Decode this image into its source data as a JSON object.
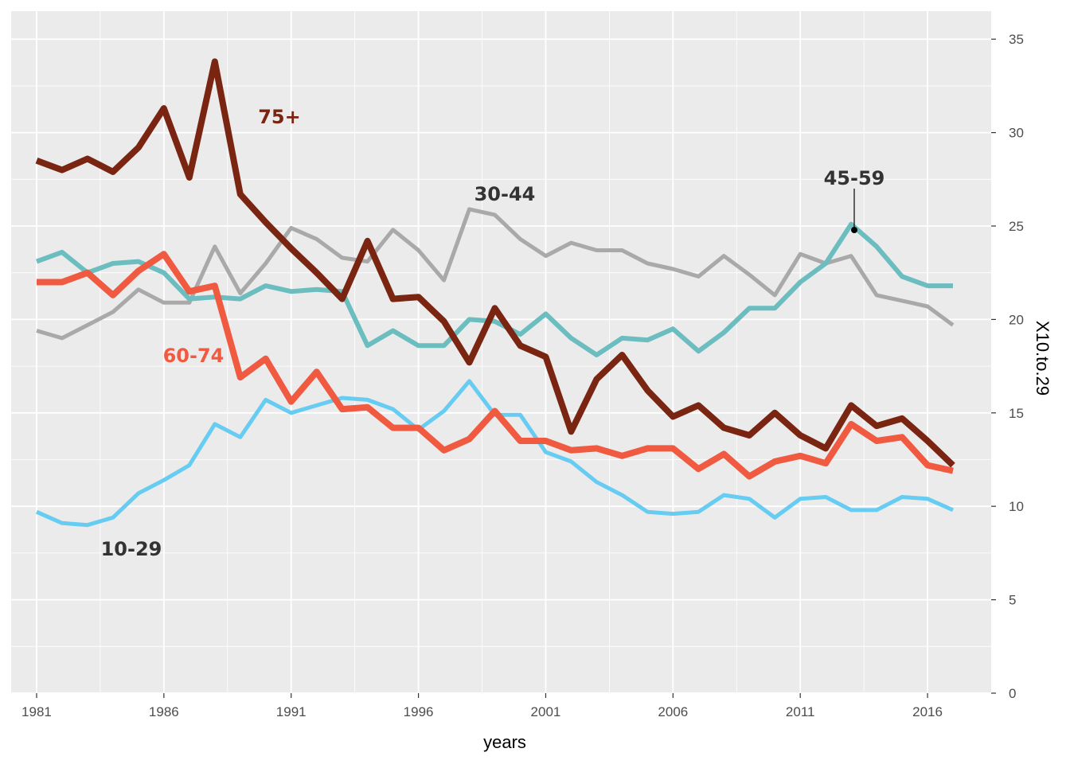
{
  "chart_data": {
    "type": "line",
    "xlabel": "years",
    "ylabel": "X10.to.29",
    "xlim": [
      1980,
      2018.5
    ],
    "ylim": [
      0,
      36.5
    ],
    "x_ticks": [
      1981,
      1986,
      1991,
      1996,
      2001,
      2006,
      2011,
      2016
    ],
    "y_ticks": [
      0,
      5,
      10,
      15,
      20,
      25,
      30,
      35
    ],
    "y_axis_position": "right",
    "grid": true,
    "legend": "none",
    "x": [
      1981,
      1982,
      1983,
      1984,
      1985,
      1986,
      1987,
      1988,
      1989,
      1990,
      1991,
      1992,
      1993,
      1994,
      1995,
      1996,
      1997,
      1998,
      1999,
      2000,
      2001,
      2002,
      2003,
      2004,
      2005,
      2006,
      2007,
      2008,
      2009,
      2010,
      2011,
      2012,
      2013,
      2014,
      2015,
      2016,
      2017
    ],
    "series": [
      {
        "name": "10-29",
        "color": "#66ccf2",
        "values": [
          9.7,
          9.1,
          9.0,
          9.4,
          10.7,
          11.4,
          12.2,
          14.4,
          13.7,
          15.7,
          15.0,
          15.4,
          15.8,
          15.7,
          15.2,
          14.1,
          15.1,
          16.7,
          14.9,
          14.9,
          12.9,
          12.4,
          11.3,
          10.6,
          9.7,
          9.6,
          9.7,
          10.6,
          10.4,
          9.4,
          10.4,
          10.5,
          9.8,
          9.8,
          10.5,
          10.4,
          9.8
        ]
      },
      {
        "name": "30-44",
        "color": "#a9a9a9",
        "values": [
          19.4,
          19.0,
          19.7,
          20.4,
          21.6,
          20.9,
          20.9,
          23.9,
          21.4,
          23.0,
          24.9,
          24.3,
          23.3,
          23.1,
          24.8,
          23.7,
          22.1,
          25.9,
          25.6,
          24.3,
          23.4,
          24.1,
          23.7,
          23.7,
          23.0,
          22.7,
          22.3,
          23.4,
          22.4,
          21.3,
          23.5,
          23.0,
          23.4,
          21.3,
          21.0,
          20.7,
          19.7
        ]
      },
      {
        "name": "45-59",
        "color": "#6bbdbf",
        "values": [
          23.1,
          23.6,
          22.5,
          23.0,
          23.1,
          22.5,
          21.1,
          21.2,
          21.1,
          21.8,
          21.5,
          21.6,
          21.5,
          18.6,
          19.4,
          18.6,
          18.6,
          20.0,
          19.9,
          19.2,
          20.3,
          19.0,
          18.1,
          19.0,
          18.9,
          19.5,
          18.3,
          19.3,
          20.6,
          20.6,
          22.0,
          23.0,
          25.1,
          23.9,
          22.3,
          21.8,
          21.8
        ]
      },
      {
        "name": "60-74",
        "color": "#f05a40",
        "values": [
          22.0,
          22.0,
          22.5,
          21.3,
          22.6,
          23.5,
          21.5,
          21.8,
          16.9,
          17.9,
          15.6,
          17.2,
          15.2,
          15.3,
          14.2,
          14.2,
          13.0,
          13.6,
          15.1,
          13.5,
          13.5,
          13.0,
          13.1,
          12.7,
          13.1,
          13.1,
          12.0,
          12.8,
          11.6,
          12.4,
          12.7,
          12.3,
          14.4,
          13.5,
          13.7,
          12.2,
          11.9
        ]
      },
      {
        "name": "75+",
        "color": "#7a2512",
        "values": [
          28.5,
          28.0,
          28.6,
          27.9,
          29.2,
          31.3,
          27.6,
          33.8,
          26.7,
          25.2,
          23.8,
          22.5,
          21.1,
          24.2,
          21.1,
          21.2,
          19.9,
          17.7,
          20.6,
          18.6,
          18.0,
          14.0,
          16.8,
          18.1,
          16.2,
          14.8,
          15.4,
          14.2,
          13.8,
          15.0,
          13.8,
          13.1,
          15.4,
          14.3,
          14.7,
          13.5,
          12.2
        ]
      }
    ],
    "annotations": [
      {
        "text": "75+",
        "color": "#7a2512"
      },
      {
        "text": "30-44",
        "color": "#333333"
      },
      {
        "text": "45-59",
        "color": "#333333"
      },
      {
        "text": "60-74",
        "color": "#f05a40"
      },
      {
        "text": "10-29",
        "color": "#333333"
      }
    ]
  }
}
